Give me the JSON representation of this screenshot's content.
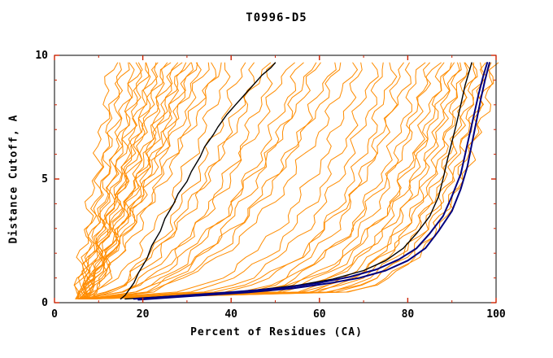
{
  "page": {
    "background": "#ffffff"
  },
  "chart_data": {
    "type": "line",
    "title": "T0996-D5",
    "xlabel": "Percent of Residues (CA)",
    "ylabel": "Distance Cutoff, A",
    "xlim": [
      0,
      100
    ],
    "ylim": [
      0,
      10
    ],
    "xticks": [
      0,
      20,
      40,
      60,
      80,
      100
    ],
    "xtick_labels": [
      "0",
      "20",
      "40",
      "60",
      "80",
      "100"
    ],
    "xminor": [
      10,
      30,
      50,
      70,
      90
    ],
    "yticks": [
      0,
      5,
      10
    ],
    "ytick_labels": [
      "0",
      "5",
      "10"
    ],
    "yminor": [
      1,
      2,
      3,
      4,
      6,
      7,
      8,
      9
    ],
    "grid": false,
    "legend": "none",
    "frame_color": "#000000",
    "tick_color": "#cc2200",
    "y_plot_min": 0.15,
    "y_plot_max": 9.7,
    "model_curves": {
      "name": "server-model-curves",
      "color": "#ff8c00",
      "width": 1,
      "description": "percent of CA residues under distance cutoff; params per curve: [x_at_bottom, x_at_top, shape_exponent]",
      "curve_params": [
        [
          5,
          13,
          1.0
        ],
        [
          5,
          15,
          0.92
        ],
        [
          6,
          16,
          1.05
        ],
        [
          5,
          18,
          0.88
        ],
        [
          6,
          19,
          0.97
        ],
        [
          7,
          20,
          1.0
        ],
        [
          5,
          21,
          0.9
        ],
        [
          6,
          22,
          0.82
        ],
        [
          7,
          23,
          0.95
        ],
        [
          6,
          24,
          0.86
        ],
        [
          5,
          25,
          0.92
        ],
        [
          7,
          26,
          1.0
        ],
        [
          6,
          27,
          0.8
        ],
        [
          8,
          28,
          0.9
        ],
        [
          6,
          29,
          0.85
        ],
        [
          7,
          30,
          0.95
        ],
        [
          5,
          31,
          0.78
        ],
        [
          8,
          32,
          0.9
        ],
        [
          6,
          33,
          0.84
        ],
        [
          7,
          35,
          0.9
        ],
        [
          6,
          37,
          0.8
        ],
        [
          8,
          38,
          0.86
        ],
        [
          6,
          40,
          0.6
        ],
        [
          7,
          43,
          0.55
        ],
        [
          6,
          46,
          0.5
        ],
        [
          8,
          48,
          0.62
        ],
        [
          7,
          50,
          0.45
        ],
        [
          6,
          53,
          0.5
        ],
        [
          8,
          56,
          0.44
        ],
        [
          7,
          58,
          0.4
        ],
        [
          6,
          60,
          0.5
        ],
        [
          8,
          63,
          0.4
        ],
        [
          7,
          65,
          0.46
        ],
        [
          6,
          68,
          0.4
        ],
        [
          6,
          70,
          0.3
        ],
        [
          7,
          73,
          0.28
        ],
        [
          6,
          75,
          0.25
        ],
        [
          8,
          77,
          0.22
        ],
        [
          7,
          79,
          0.2
        ],
        [
          6,
          81,
          0.25
        ],
        [
          8,
          83,
          0.2
        ],
        [
          7,
          85,
          0.18
        ],
        [
          6,
          86,
          0.22
        ],
        [
          8,
          88,
          0.18
        ],
        [
          7,
          89,
          0.16
        ],
        [
          6,
          90,
          0.2
        ],
        [
          8,
          91,
          0.15
        ],
        [
          7,
          92,
          0.18
        ],
        [
          6,
          93,
          0.14
        ],
        [
          8,
          94,
          0.16
        ],
        [
          7,
          95,
          0.13
        ],
        [
          6,
          96,
          0.15
        ],
        [
          8,
          97,
          0.13
        ],
        [
          7,
          98,
          0.14
        ],
        [
          6,
          99,
          0.12
        ],
        [
          8,
          100,
          0.13
        ]
      ]
    },
    "highlight_series": [
      {
        "name": "black-curve-mid",
        "color": "#000000",
        "width": 1.4,
        "points": [
          [
            15,
            0.15
          ],
          [
            16,
            0.3
          ],
          [
            18,
            0.8
          ],
          [
            19,
            1.2
          ],
          [
            21,
            1.8
          ],
          [
            22,
            2.3
          ],
          [
            24,
            2.9
          ],
          [
            25,
            3.4
          ],
          [
            27,
            4.0
          ],
          [
            28,
            4.4
          ],
          [
            30,
            4.9
          ],
          [
            31,
            5.3
          ],
          [
            33,
            5.9
          ],
          [
            34,
            6.3
          ],
          [
            36,
            6.8
          ],
          [
            37,
            7.1
          ],
          [
            39,
            7.6
          ],
          [
            41,
            8.0
          ],
          [
            43,
            8.4
          ],
          [
            45,
            8.8
          ],
          [
            47,
            9.2
          ],
          [
            49,
            9.5
          ],
          [
            50,
            9.7
          ]
        ]
      },
      {
        "name": "black-curve-right",
        "color": "#000000",
        "width": 1.4,
        "points": [
          [
            16,
            0.15
          ],
          [
            25,
            0.25
          ],
          [
            35,
            0.35
          ],
          [
            45,
            0.5
          ],
          [
            55,
            0.7
          ],
          [
            63,
            0.95
          ],
          [
            70,
            1.3
          ],
          [
            75,
            1.7
          ],
          [
            79,
            2.2
          ],
          [
            82,
            2.8
          ],
          [
            85,
            3.5
          ],
          [
            87,
            4.3
          ],
          [
            88,
            5.0
          ],
          [
            89,
            5.8
          ],
          [
            90,
            6.5
          ],
          [
            91,
            7.2
          ],
          [
            92,
            8.0
          ],
          [
            93,
            8.8
          ],
          [
            94,
            9.4
          ],
          [
            94.5,
            9.7
          ]
        ]
      },
      {
        "name": "blue-curve-1",
        "color": "#000080",
        "width": 2,
        "points": [
          [
            18,
            0.15
          ],
          [
            30,
            0.3
          ],
          [
            42,
            0.45
          ],
          [
            52,
            0.6
          ],
          [
            60,
            0.8
          ],
          [
            67,
            1.05
          ],
          [
            73,
            1.35
          ],
          [
            78,
            1.75
          ],
          [
            82,
            2.2
          ],
          [
            85,
            2.8
          ],
          [
            88,
            3.5
          ],
          [
            90,
            4.3
          ],
          [
            92,
            5.2
          ],
          [
            93,
            6.0
          ],
          [
            94,
            6.8
          ],
          [
            95,
            7.6
          ],
          [
            96,
            8.4
          ],
          [
            97,
            9.1
          ],
          [
            98,
            9.7
          ]
        ]
      },
      {
        "name": "blue-curve-2",
        "color": "#000080",
        "width": 2,
        "points": [
          [
            19,
            0.12
          ],
          [
            32,
            0.28
          ],
          [
            44,
            0.42
          ],
          [
            54,
            0.58
          ],
          [
            62,
            0.78
          ],
          [
            69,
            1.0
          ],
          [
            75,
            1.3
          ],
          [
            80,
            1.7
          ],
          [
            84,
            2.2
          ],
          [
            87,
            2.9
          ],
          [
            90,
            3.7
          ],
          [
            92,
            4.6
          ],
          [
            93.5,
            5.5
          ],
          [
            94.5,
            6.4
          ],
          [
            95.5,
            7.3
          ],
          [
            96.5,
            8.2
          ],
          [
            97.5,
            9.0
          ],
          [
            98.5,
            9.7
          ]
        ]
      }
    ]
  }
}
